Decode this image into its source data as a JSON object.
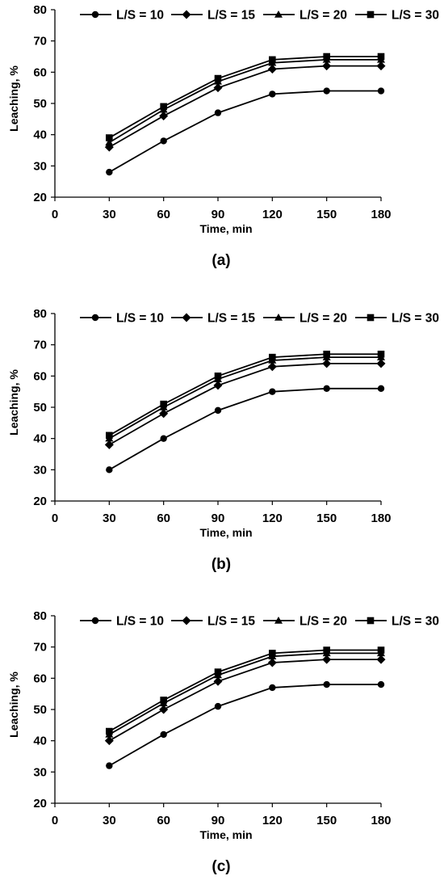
{
  "chart_data": [
    {
      "type": "line",
      "caption": "(a)",
      "xlabel": "Time, min",
      "ylabel": "Leaching, %",
      "xlim": [
        0,
        180
      ],
      "ylim": [
        20,
        80
      ],
      "xticks": [
        0,
        30,
        60,
        90,
        120,
        150,
        180
      ],
      "yticks": [
        20,
        30,
        40,
        50,
        60,
        70,
        80
      ],
      "grid": false,
      "legend_position": "top",
      "x": [
        30,
        60,
        90,
        120,
        150,
        180
      ],
      "series": [
        {
          "name": "L/S = 10",
          "marker": "circle",
          "values": [
            28,
            38,
            47,
            53,
            54,
            54
          ]
        },
        {
          "name": "L/S = 15",
          "marker": "diamond",
          "values": [
            36,
            46,
            55,
            61,
            62,
            62
          ]
        },
        {
          "name": "L/S = 20",
          "marker": "triangle",
          "values": [
            37.5,
            48,
            57,
            63,
            64,
            64
          ]
        },
        {
          "name": "L/S = 30",
          "marker": "square",
          "values": [
            39,
            49,
            58,
            64,
            65,
            65
          ]
        }
      ]
    },
    {
      "type": "line",
      "caption": "(b)",
      "xlabel": "Time, min",
      "ylabel": "Leaching, %",
      "xlim": [
        0,
        180
      ],
      "ylim": [
        20,
        80
      ],
      "xticks": [
        0,
        30,
        60,
        90,
        120,
        150,
        180
      ],
      "yticks": [
        20,
        30,
        40,
        50,
        60,
        70,
        80
      ],
      "grid": false,
      "legend_position": "top",
      "x": [
        30,
        60,
        90,
        120,
        150,
        180
      ],
      "series": [
        {
          "name": "L/S = 10",
          "marker": "circle",
          "values": [
            30,
            40,
            49,
            55,
            56,
            56
          ]
        },
        {
          "name": "L/S = 15",
          "marker": "diamond",
          "values": [
            38,
            48,
            57,
            63,
            64,
            64
          ]
        },
        {
          "name": "L/S = 20",
          "marker": "triangle",
          "values": [
            40,
            50,
            59,
            65,
            66,
            66
          ]
        },
        {
          "name": "L/S = 30",
          "marker": "square",
          "values": [
            41,
            51,
            60,
            66,
            67,
            67
          ]
        }
      ]
    },
    {
      "type": "line",
      "caption": "(c)",
      "xlabel": "Time, min",
      "ylabel": "Leaching, %",
      "xlim": [
        0,
        180
      ],
      "ylim": [
        20,
        80
      ],
      "xticks": [
        0,
        30,
        60,
        90,
        120,
        150,
        180
      ],
      "yticks": [
        20,
        30,
        40,
        50,
        60,
        70,
        80
      ],
      "grid": false,
      "legend_position": "top",
      "x": [
        30,
        60,
        90,
        120,
        150,
        180
      ],
      "series": [
        {
          "name": "L/S = 10",
          "marker": "circle",
          "values": [
            32,
            42,
            51,
            57,
            58,
            58
          ]
        },
        {
          "name": "L/S = 15",
          "marker": "diamond",
          "values": [
            40,
            50,
            59,
            65,
            66,
            66
          ]
        },
        {
          "name": "L/S = 20",
          "marker": "triangle",
          "values": [
            42,
            52,
            61,
            67,
            68,
            68
          ]
        },
        {
          "name": "L/S = 30",
          "marker": "square",
          "values": [
            43,
            53,
            62,
            68,
            69,
            69
          ]
        }
      ]
    }
  ]
}
